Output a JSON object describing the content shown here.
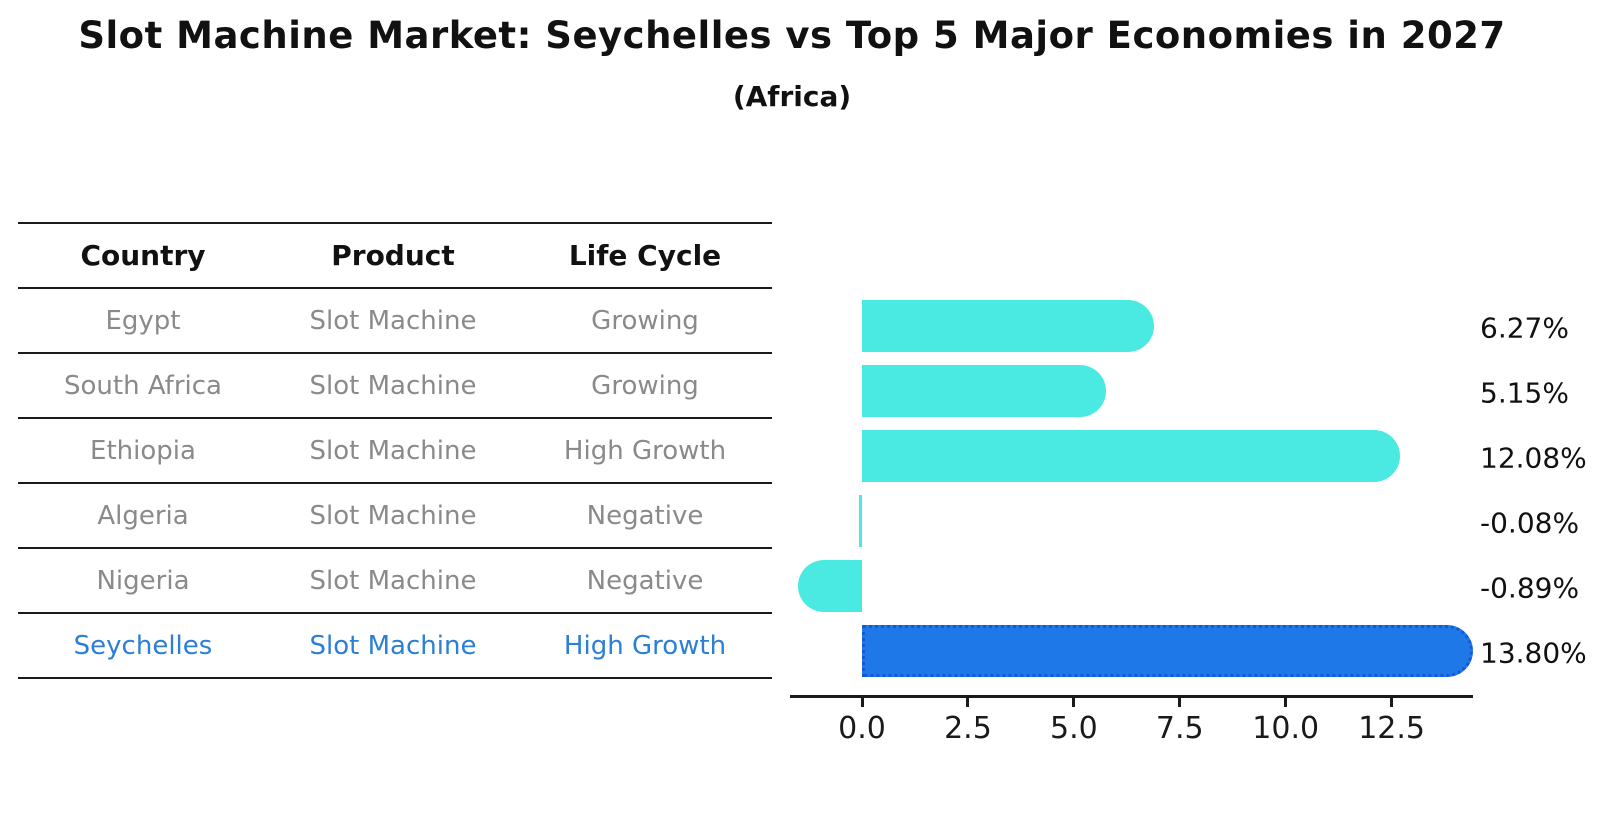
{
  "header": {
    "title": "Slot Machine Market: Seychelles vs Top 5 Major Economies in 2027",
    "subtitle": "(Africa)"
  },
  "table": {
    "headers": [
      "Country",
      "Product",
      "Life Cycle"
    ],
    "rows": [
      {
        "country": "Egypt",
        "product": "Slot Machine",
        "life_cycle": "Growing",
        "highlight": false
      },
      {
        "country": "South Africa",
        "product": "Slot Machine",
        "life_cycle": "Growing",
        "highlight": false
      },
      {
        "country": "Ethiopia",
        "product": "Slot Machine",
        "life_cycle": "High Growth",
        "highlight": false
      },
      {
        "country": "Algeria",
        "product": "Slot Machine",
        "life_cycle": "Negative",
        "highlight": false
      },
      {
        "country": "Nigeria",
        "product": "Slot Machine",
        "life_cycle": "Negative",
        "highlight": false
      },
      {
        "country": "Seychelles",
        "product": "Slot Machine",
        "life_cycle": "High Growth",
        "highlight": true
      }
    ]
  },
  "chart_data": {
    "type": "bar",
    "orientation": "horizontal",
    "title": "Slot Machine Market: Seychelles vs Top 5 Major Economies in 2027 (Africa)",
    "categories": [
      "Egypt",
      "South Africa",
      "Ethiopia",
      "Algeria",
      "Nigeria",
      "Seychelles"
    ],
    "values": [
      6.27,
      5.15,
      12.08,
      -0.08,
      -0.89,
      13.8
    ],
    "value_labels": [
      "6.27%",
      "5.15%",
      "12.08%",
      "-0.08%",
      "-0.89%",
      "13.80%"
    ],
    "x_ticks": [
      0.0,
      2.5,
      5.0,
      7.5,
      10.0,
      12.5
    ],
    "x_tick_labels": [
      "0.0",
      "2.5",
      "5.0",
      "7.5",
      "10.0",
      "12.5"
    ],
    "xlim": [
      -1.7,
      14.35
    ],
    "grid": false,
    "legend_position": "none",
    "highlight_index": 5,
    "colors": {
      "bar": "#4ae9e1",
      "highlight_bar": "#1e78e8",
      "highlight_border": "#1558d6",
      "value_label": "#111111",
      "axis": "#1a1a1a"
    }
  },
  "text_colors": {
    "title": "#111111",
    "table_header": "#111111",
    "table_row": "#8a8a8a",
    "table_highlight": "#2b7fd6"
  }
}
